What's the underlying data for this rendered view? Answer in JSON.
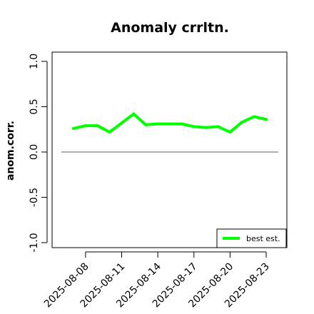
{
  "chart_data": {
    "type": "line",
    "title": "Anomaly crrltn.",
    "xlabel": "",
    "ylabel": "anom.corr.",
    "ylim": [
      -1.0,
      1.0
    ],
    "yticks": [
      "-1.0",
      "-0.5",
      "0.0",
      "0.5",
      "1.0"
    ],
    "x": [
      "2025-08-07",
      "2025-08-08",
      "2025-08-09",
      "2025-08-10",
      "2025-08-11",
      "2025-08-12",
      "2025-08-13",
      "2025-08-14",
      "2025-08-15",
      "2025-08-16",
      "2025-08-17",
      "2025-08-18",
      "2025-08-19",
      "2025-08-20",
      "2025-08-21",
      "2025-08-22",
      "2025-08-23"
    ],
    "xtick_labels": [
      "2025-08-08",
      "2025-08-11",
      "2025-08-14",
      "2025-08-17",
      "2025-08-20",
      "2025-08-23"
    ],
    "highlight_tick": "2025-08-14",
    "highlight_color": "#228B22",
    "series": [
      {
        "name": "best est.",
        "color": "#00ff00",
        "values": [
          0.26,
          0.29,
          0.29,
          0.22,
          0.32,
          0.42,
          0.3,
          0.31,
          0.31,
          0.31,
          0.28,
          0.27,
          0.28,
          0.22,
          0.33,
          0.39,
          0.36
        ]
      }
    ],
    "reference_line": {
      "y": 0.0,
      "color": "#808080"
    },
    "legend": {
      "position": "bottom-right",
      "entries": [
        "best est."
      ]
    },
    "grid": false
  }
}
